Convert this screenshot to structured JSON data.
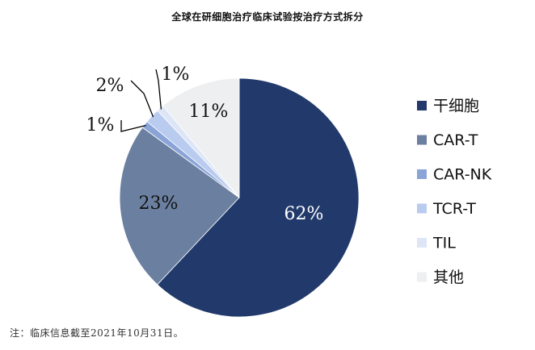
{
  "colors": {
    "background": "#ffffff",
    "leader_line": "#000000",
    "series": [
      "#223a6b",
      "#6b80a0",
      "#8aa4d8",
      "#b9cbef",
      "#dde6f7",
      "#eeeff1"
    ]
  },
  "chart_data": {
    "type": "pie",
    "title": "全球在研细胞治疗临床试验按治疗方式拆分",
    "legend_position": "right",
    "start_angle_deg": 0,
    "direction": "clockwise",
    "slices": [
      {
        "label": "干细胞",
        "value": 62,
        "display": "62%"
      },
      {
        "label": "CAR-T",
        "value": 23,
        "display": "23%"
      },
      {
        "label": "CAR-NK",
        "value": 1,
        "display": "1%"
      },
      {
        "label": "TCR-T",
        "value": 2,
        "display": "2%"
      },
      {
        "label": "TIL",
        "value": 1,
        "display": "1%"
      },
      {
        "label": "其他",
        "value": 11,
        "display": "11%"
      }
    ]
  },
  "note": "注：临床信息截至2021年10月31日。"
}
